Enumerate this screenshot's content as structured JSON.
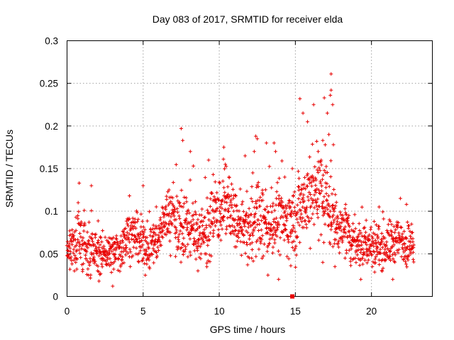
{
  "chart_data": {
    "type": "scatter",
    "title": "Day 083 of 2017, SRMTID for receiver elda",
    "xlabel": "GPS time / hours",
    "ylabel": "SRMTID / TECUs",
    "xlim": [
      0,
      24
    ],
    "ylim": [
      0,
      0.3
    ],
    "xticks": [
      0,
      5,
      10,
      15,
      20
    ],
    "xtick_labels": [
      "0",
      "5",
      "10",
      "15",
      "20"
    ],
    "yticks": [
      0,
      0.05,
      0.1,
      0.15,
      0.2,
      0.25,
      0.3
    ],
    "ytick_labels": [
      "0",
      "0.05",
      "0.1",
      "0.15",
      "0.2",
      "0.25",
      "0.3"
    ],
    "grid": true,
    "marker": "+",
    "color": "#e80000",
    "series": [
      {
        "name": "SRMTID",
        "profile_x": [
          0,
          0.5,
          1,
          1.5,
          2,
          2.5,
          3,
          3.5,
          4,
          4.5,
          5,
          5.5,
          6,
          6.5,
          7,
          7.5,
          8,
          8.5,
          9,
          9.5,
          10,
          10.5,
          11,
          11.5,
          12,
          12.5,
          13,
          13.5,
          14,
          14.5,
          15,
          15.5,
          16,
          16.5,
          17,
          17.5,
          18,
          18.5,
          19,
          19.5,
          20,
          20.5,
          21,
          21.5,
          22,
          22.5,
          22.8
        ],
        "profile_mean": [
          0.055,
          0.06,
          0.058,
          0.06,
          0.05,
          0.05,
          0.05,
          0.055,
          0.075,
          0.07,
          0.055,
          0.06,
          0.07,
          0.095,
          0.09,
          0.085,
          0.08,
          0.075,
          0.075,
          0.085,
          0.1,
          0.11,
          0.09,
          0.075,
          0.08,
          0.09,
          0.085,
          0.085,
          0.09,
          0.085,
          0.09,
          0.11,
          0.12,
          0.125,
          0.115,
          0.09,
          0.08,
          0.07,
          0.065,
          0.06,
          0.06,
          0.06,
          0.06,
          0.065,
          0.065,
          0.06,
          0.055
        ],
        "profile_spread": [
          0.015,
          0.025,
          0.03,
          0.03,
          0.02,
          0.02,
          0.02,
          0.025,
          0.025,
          0.025,
          0.025,
          0.025,
          0.025,
          0.025,
          0.035,
          0.04,
          0.035,
          0.03,
          0.035,
          0.035,
          0.035,
          0.035,
          0.03,
          0.03,
          0.035,
          0.04,
          0.035,
          0.03,
          0.035,
          0.035,
          0.04,
          0.045,
          0.045,
          0.045,
          0.045,
          0.035,
          0.025,
          0.025,
          0.025,
          0.025,
          0.025,
          0.025,
          0.025,
          0.025,
          0.025,
          0.025,
          0.02
        ],
        "profile_min": [
          0.03,
          0.02,
          0.015,
          0.02,
          0.02,
          0.02,
          0.012,
          0.02,
          0.025,
          0.02,
          0.015,
          0.02,
          0.03,
          0.05,
          0.04,
          0.04,
          0.035,
          0.03,
          0.03,
          0.035,
          0.04,
          0.05,
          0.04,
          0.03,
          0.03,
          0.03,
          0.035,
          0.03,
          0.03,
          0.02,
          0.03,
          0.04,
          0.04,
          0.045,
          0.04,
          0.04,
          0.035,
          0.03,
          0.025,
          0.025,
          0.025,
          0.025,
          0.02,
          0.025,
          0.025,
          0.025,
          0.03
        ],
        "points": [
          [
            0.8,
            0.133
          ],
          [
            1.6,
            0.13
          ],
          [
            4.1,
            0.118
          ],
          [
            5.0,
            0.13
          ],
          [
            6.7,
            0.125
          ],
          [
            7.5,
            0.197
          ],
          [
            7.6,
            0.183
          ],
          [
            8.1,
            0.17
          ],
          [
            8.3,
            0.153
          ],
          [
            9.3,
            0.16
          ],
          [
            9.6,
            0.143
          ],
          [
            10.3,
            0.175
          ],
          [
            10.4,
            0.155
          ],
          [
            11.7,
            0.165
          ],
          [
            12.2,
            0.145
          ],
          [
            12.3,
            0.17
          ],
          [
            12.4,
            0.188
          ],
          [
            12.5,
            0.185
          ],
          [
            13.1,
            0.18
          ],
          [
            13.6,
            0.18
          ],
          [
            13.7,
            0.17
          ],
          [
            14.3,
            0.14
          ],
          [
            14.8,
            0.15
          ],
          [
            15.3,
            0.232
          ],
          [
            15.5,
            0.215
          ],
          [
            15.8,
            0.205
          ],
          [
            16.2,
            0.225
          ],
          [
            16.4,
            0.182
          ],
          [
            16.5,
            0.17
          ],
          [
            16.8,
            0.183
          ],
          [
            16.9,
            0.233
          ],
          [
            17.1,
            0.215
          ],
          [
            17.2,
            0.19
          ],
          [
            17.3,
            0.236
          ],
          [
            17.35,
            0.242
          ],
          [
            17.35,
            0.261
          ],
          [
            17.45,
            0.225
          ],
          [
            17.5,
            0.178
          ],
          [
            18.3,
            0.108
          ],
          [
            20.5,
            0.105
          ],
          [
            21.9,
            0.115
          ],
          [
            22.3,
            0.108
          ],
          [
            13.9,
            0.02
          ],
          [
            14.7,
            0.036
          ],
          [
            3.0,
            0.012
          ],
          [
            2.1,
            0.018
          ],
          [
            19.3,
            0.02
          ],
          [
            21.4,
            0.02
          ],
          [
            17.6,
            0.035
          ],
          [
            8.6,
            0.03
          ],
          [
            16.8,
            0.04
          ],
          [
            13.2,
            0.025
          ]
        ],
        "special_points": [
          [
            14.8,
            0.0
          ]
        ]
      }
    ]
  }
}
